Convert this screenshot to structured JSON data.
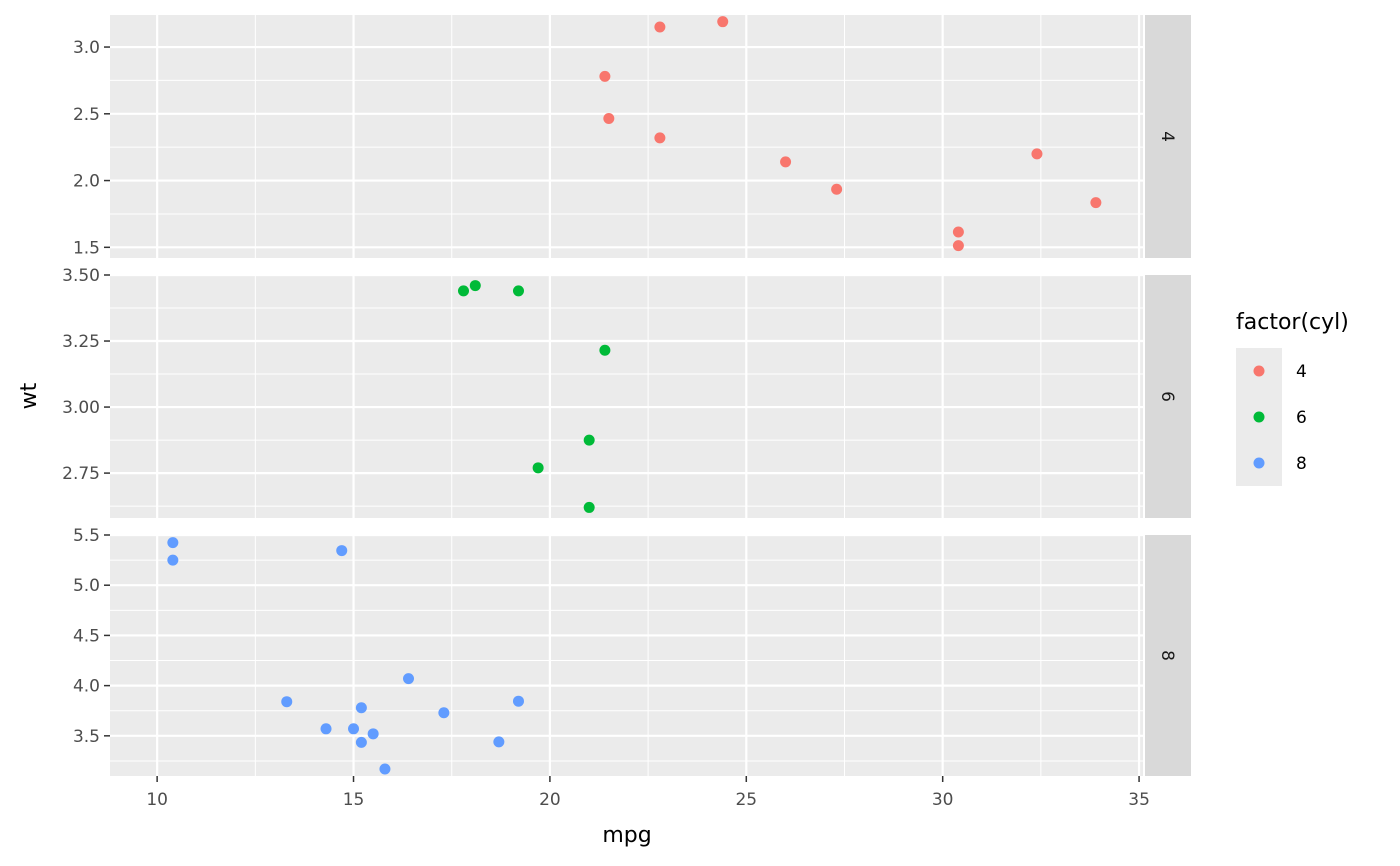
{
  "chart_data": {
    "type": "scatter",
    "xlabel": "mpg",
    "ylabel": "wt",
    "xlim": [
      8.8,
      35.1
    ],
    "x_ticks": [
      10,
      15,
      20,
      25,
      30,
      35
    ],
    "x_tick_labels": [
      "10",
      "15",
      "20",
      "25",
      "30",
      "35"
    ],
    "facet_by": "cyl",
    "facet_scales": "free_y",
    "grid": true,
    "legend": {
      "title": "factor(cyl)",
      "placement": "right",
      "entries": [
        {
          "label": "4",
          "color": "#F8766D"
        },
        {
          "label": "6",
          "color": "#00BA38"
        },
        {
          "label": "8",
          "color": "#619CFF"
        }
      ]
    },
    "panels": [
      {
        "strip": "4",
        "color": "#F8766D",
        "ylim": [
          1.42,
          3.24
        ],
        "y_ticks": [
          1.5,
          2.0,
          2.5,
          3.0
        ],
        "y_tick_labels": [
          "1.5",
          "2.0",
          "2.5",
          "3.0"
        ],
        "points": [
          {
            "x": 22.8,
            "y": 2.32
          },
          {
            "x": 24.4,
            "y": 3.19
          },
          {
            "x": 22.8,
            "y": 3.15
          },
          {
            "x": 32.4,
            "y": 2.2
          },
          {
            "x": 30.4,
            "y": 1.615
          },
          {
            "x": 33.9,
            "y": 1.835
          },
          {
            "x": 21.5,
            "y": 2.465
          },
          {
            "x": 27.3,
            "y": 1.935
          },
          {
            "x": 26.0,
            "y": 2.14
          },
          {
            "x": 30.4,
            "y": 1.513
          },
          {
            "x": 21.4,
            "y": 2.78
          }
        ]
      },
      {
        "strip": "6",
        "color": "#00BA38",
        "ylim": [
          2.58,
          3.5
        ],
        "y_ticks": [
          2.75,
          3.0,
          3.25,
          3.5
        ],
        "y_tick_labels": [
          "2.75",
          "3.00",
          "3.25",
          "3.50"
        ],
        "points": [
          {
            "x": 21.0,
            "y": 2.62
          },
          {
            "x": 21.0,
            "y": 2.875
          },
          {
            "x": 21.4,
            "y": 3.215
          },
          {
            "x": 18.1,
            "y": 3.46
          },
          {
            "x": 19.2,
            "y": 3.44
          },
          {
            "x": 17.8,
            "y": 3.44
          },
          {
            "x": 19.7,
            "y": 2.77
          }
        ]
      },
      {
        "strip": "8",
        "color": "#619CFF",
        "ylim": [
          3.1,
          5.5
        ],
        "y_ticks": [
          3.5,
          4.0,
          4.5,
          5.0,
          5.5
        ],
        "y_tick_labels": [
          "3.5",
          "4.0",
          "4.5",
          "5.0",
          "5.5"
        ],
        "points": [
          {
            "x": 18.7,
            "y": 3.44
          },
          {
            "x": 14.3,
            "y": 3.57
          },
          {
            "x": 16.4,
            "y": 4.07
          },
          {
            "x": 17.3,
            "y": 3.73
          },
          {
            "x": 15.2,
            "y": 3.78
          },
          {
            "x": 10.4,
            "y": 5.25
          },
          {
            "x": 10.4,
            "y": 5.424
          },
          {
            "x": 14.7,
            "y": 5.345
          },
          {
            "x": 15.5,
            "y": 3.52
          },
          {
            "x": 15.2,
            "y": 3.435
          },
          {
            "x": 13.3,
            "y": 3.84
          },
          {
            "x": 19.2,
            "y": 3.845
          },
          {
            "x": 15.8,
            "y": 3.17
          },
          {
            "x": 15.0,
            "y": 3.57
          }
        ]
      }
    ]
  }
}
